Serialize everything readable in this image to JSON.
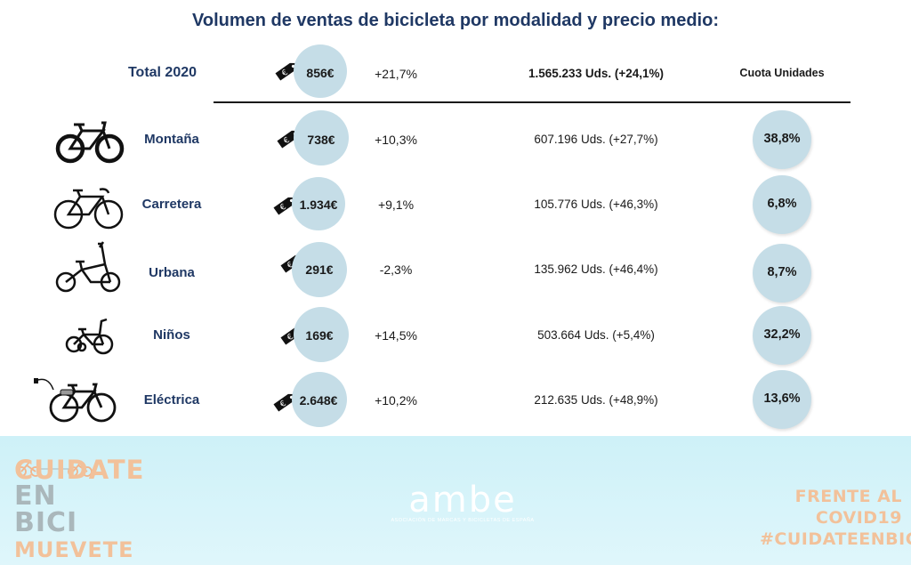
{
  "title": "Volumen de ventas de bicicleta por modalidad y precio medio:",
  "total": {
    "label": "Total 2020",
    "price": "856€",
    "change": "+21,7%",
    "units": "1.565.233 Uds. (+24,1%)",
    "share_header": "Cuota Unidades"
  },
  "rows": [
    {
      "category": "Montaña",
      "price": "738€",
      "change": "+10,3%",
      "units": "607.196 Uds. (+27,7%)",
      "share": "38,8%",
      "icon": "mountain-bike-icon"
    },
    {
      "category": "Carretera",
      "price": "1.934€",
      "change": "+9,1%",
      "units": "105.776 Uds. (+46,3%)",
      "share": "6,8%",
      "icon": "road-bike-icon"
    },
    {
      "category": "Urbana",
      "price": "291€",
      "change": "-2,3%",
      "units": "135.962 Uds. (+46,4%)",
      "share": "8,7%",
      "icon": "folding-bike-icon"
    },
    {
      "category": "Niños",
      "price": "169€",
      "change": "+14,5%",
      "units": "503.664 Uds. (+5,4%)",
      "share": "32,2%",
      "icon": "kids-bike-icon"
    },
    {
      "category": "Eléctrica",
      "price": "2.648€",
      "change": "+10,2%",
      "units": "212.635 Uds. (+48,9%)",
      "share": "13,6%",
      "icon": "electric-bike-icon"
    }
  ],
  "footer": {
    "left_lines": [
      "CUIDATE",
      "EN BICI",
      "MUEVETE"
    ],
    "logo_word": "ambe",
    "logo_subtitle": "ASOCIACIÓN DE MARCAS Y BICICLETAS DE ESPAÑA",
    "right_line1": "FRENTE AL COVID19",
    "right_line2": "#CUIDATEENBICI"
  },
  "colors": {
    "title": "#1f3864",
    "circle": "#c5dde7",
    "footer_bg": "#cef1f8",
    "accent_orange": "#f2c19a"
  }
}
